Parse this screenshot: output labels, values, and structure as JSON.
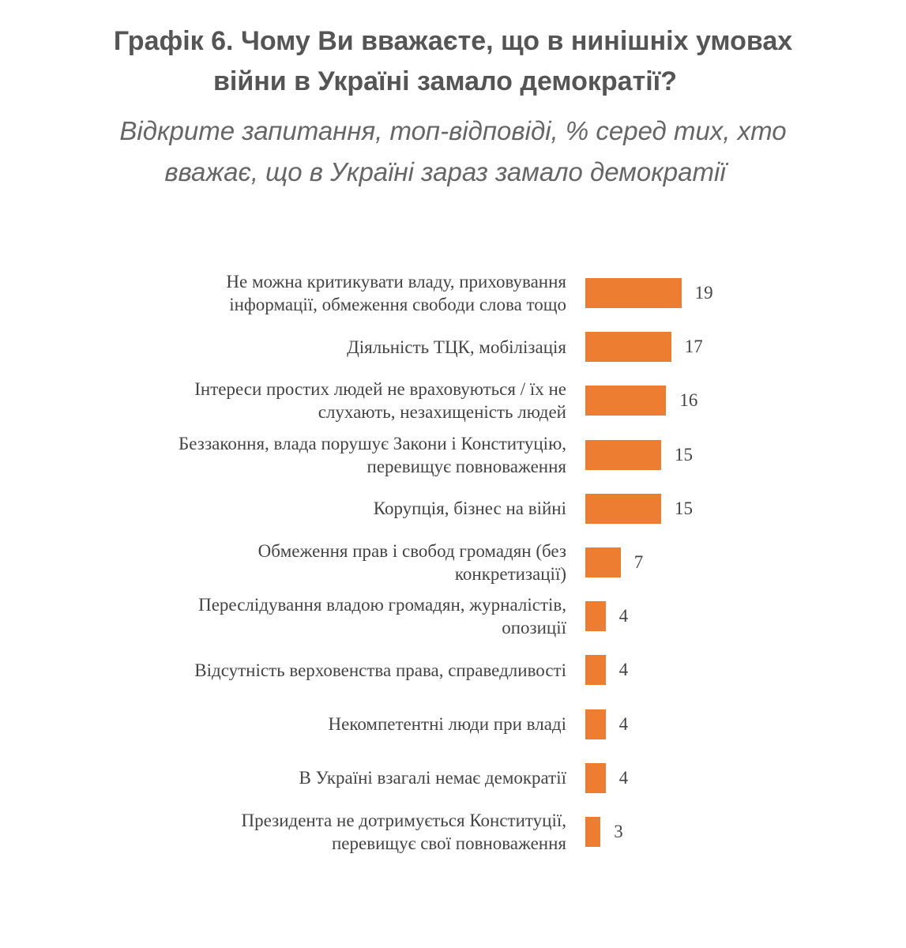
{
  "chart_data": {
    "type": "bar",
    "orientation": "horizontal",
    "title_lines": [
      "Графік 6. Чому Ви вважаєте, що в нинішніх умовах",
      "війни в Україні замало демократії?"
    ],
    "subtitle_lines": [
      "Відкрите запитання, топ-відповіді, % серед тих, хто",
      "вважає, що в Україні зараз замало демократії"
    ],
    "bar_color": "#ED7D31",
    "grid": false,
    "categories": [
      [
        "Не можна критикувати владу, приховування",
        "інформації, обмеження свободи слова тощо"
      ],
      [
        "Діяльність ТЦК, мобілізація"
      ],
      [
        "Інтереси простих людей не враховуються / їх не",
        "слухають, незахищеність людей"
      ],
      [
        "Беззаконня, влада порушує Закони і Конституцію,",
        "перевищує повноваження"
      ],
      [
        "Корупція, бізнес на війні"
      ],
      [
        "Обмеження прав і свобод громадян (без",
        "конкретизації)"
      ],
      [
        "Переслідування владою громадян, журналістів,",
        "опозиції"
      ],
      [
        "Відсутність верховенства права, справедливості"
      ],
      [
        "Некомпетентні люди при владі"
      ],
      [
        "В Україні взагалі немає демократії"
      ],
      [
        "Президента не дотримується Конституції,",
        "перевищує свої повноваження"
      ]
    ],
    "values": [
      19,
      17,
      16,
      15,
      15,
      7,
      4,
      4,
      4,
      4,
      3
    ]
  }
}
